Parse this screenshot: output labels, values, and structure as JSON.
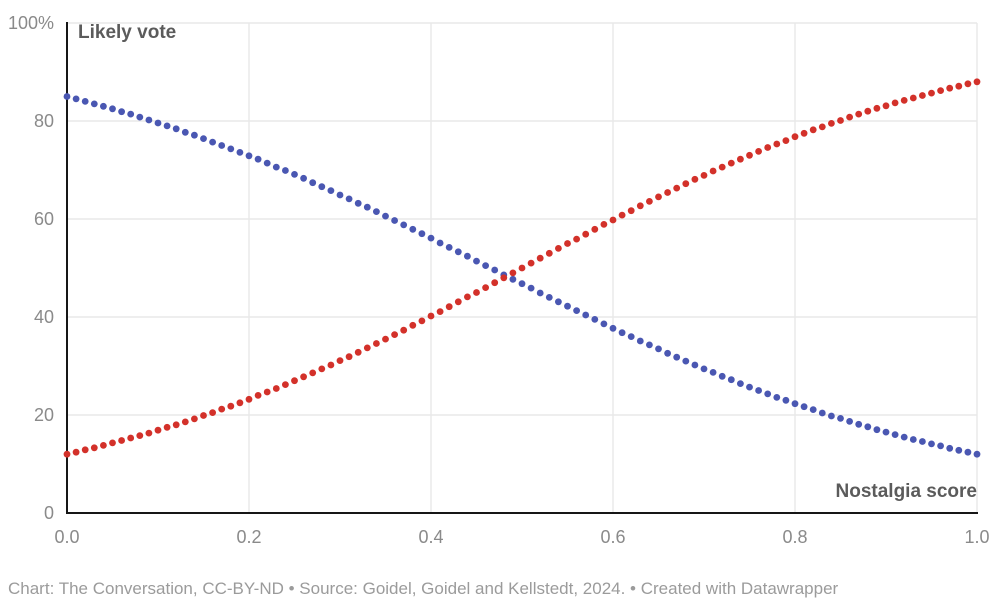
{
  "colors": {
    "background": "#ffffff",
    "series_blue": "#4A57B2",
    "series_red": "#D3312A",
    "grid": "#e8e8e8",
    "axis_line": "#161616",
    "tick_text": "#8a8a8a",
    "axis_title_text": "#5b5b5b",
    "footer_text": "#9b9b9b"
  },
  "chart_data": {
    "type": "scatter",
    "title": "",
    "y_axis_label": "Likely vote",
    "x_axis_label": "Nostalgia score",
    "xlim": [
      0,
      1
    ],
    "ylim": [
      0,
      100
    ],
    "grid": true,
    "legend": "none",
    "y_ticks": [
      {
        "value": 0,
        "label": "0"
      },
      {
        "value": 20,
        "label": "20"
      },
      {
        "value": 40,
        "label": "40"
      },
      {
        "value": 60,
        "label": "60"
      },
      {
        "value": 80,
        "label": "80"
      },
      {
        "value": 100,
        "label": "100%"
      }
    ],
    "x_ticks": [
      {
        "value": 0.0,
        "label": "0.0"
      },
      {
        "value": 0.2,
        "label": "0.2"
      },
      {
        "value": 0.4,
        "label": "0.4"
      },
      {
        "value": 0.6,
        "label": "0.6"
      },
      {
        "value": 0.8,
        "label": "0.8"
      },
      {
        "value": 1.0,
        "label": "1.0"
      }
    ],
    "x": [
      0,
      0.01,
      0.02,
      0.03,
      0.04,
      0.05,
      0.06,
      0.07,
      0.08,
      0.09,
      0.1,
      0.11,
      0.12,
      0.13,
      0.14,
      0.15,
      0.16,
      0.17,
      0.18,
      0.19,
      0.2,
      0.21,
      0.22,
      0.23,
      0.24,
      0.25,
      0.26,
      0.27,
      0.28,
      0.29,
      0.3,
      0.31,
      0.32,
      0.33,
      0.34,
      0.35,
      0.36,
      0.37,
      0.38,
      0.39,
      0.4,
      0.41,
      0.42,
      0.43,
      0.44,
      0.45,
      0.46,
      0.47,
      0.48,
      0.49,
      0.5,
      0.51,
      0.52,
      0.53,
      0.54,
      0.55,
      0.56,
      0.57,
      0.58,
      0.59,
      0.6,
      0.61,
      0.62,
      0.63,
      0.64,
      0.65,
      0.66,
      0.67,
      0.68,
      0.69,
      0.7,
      0.71,
      0.72,
      0.73,
      0.74,
      0.75,
      0.76,
      0.77,
      0.78,
      0.79,
      0.8,
      0.81,
      0.82,
      0.83,
      0.84,
      0.85,
      0.86,
      0.87,
      0.88,
      0.89,
      0.9,
      0.91,
      0.92,
      0.93,
      0.94,
      0.95,
      0.96,
      0.97,
      0.98,
      0.99,
      1
    ],
    "series": [
      {
        "id": "blue",
        "color": "#4A57B2",
        "values": [
          85.0,
          84.5,
          84.0,
          83.5,
          83.0,
          82.5,
          81.9,
          81.4,
          80.8,
          80.2,
          79.6,
          79.0,
          78.4,
          77.7,
          77.1,
          76.4,
          75.7,
          75.0,
          74.3,
          73.6,
          72.9,
          72.2,
          71.4,
          70.6,
          69.9,
          69.1,
          68.3,
          67.4,
          66.6,
          65.8,
          64.9,
          64.1,
          63.2,
          62.4,
          61.5,
          60.6,
          59.7,
          58.8,
          57.9,
          57.0,
          56.1,
          55.1,
          54.2,
          53.3,
          52.4,
          51.4,
          50.5,
          49.6,
          48.6,
          47.7,
          46.8,
          45.9,
          44.9,
          44.0,
          43.1,
          42.2,
          41.3,
          40.4,
          39.5,
          38.6,
          37.7,
          36.8,
          36.0,
          35.1,
          34.3,
          33.5,
          32.6,
          31.8,
          31.0,
          30.2,
          29.4,
          28.7,
          27.9,
          27.2,
          26.4,
          25.7,
          25.0,
          24.3,
          23.6,
          23.0,
          22.3,
          21.7,
          21.1,
          20.4,
          19.8,
          19.3,
          18.7,
          18.1,
          17.6,
          17.0,
          16.5,
          16.0,
          15.5,
          15.0,
          14.6,
          14.1,
          13.7,
          13.2,
          12.8,
          12.4,
          12.0
        ]
      },
      {
        "id": "red",
        "color": "#D3312A",
        "values": [
          12.0,
          12.4,
          12.9,
          13.3,
          13.8,
          14.3,
          14.8,
          15.3,
          15.8,
          16.3,
          16.9,
          17.5,
          18.0,
          18.6,
          19.2,
          19.9,
          20.5,
          21.2,
          21.8,
          22.5,
          23.2,
          24.0,
          24.7,
          25.4,
          26.2,
          27.0,
          27.8,
          28.6,
          29.4,
          30.2,
          31.1,
          31.9,
          32.8,
          33.7,
          34.6,
          35.5,
          36.4,
          37.3,
          38.3,
          39.2,
          40.2,
          41.1,
          42.1,
          43.1,
          44.1,
          45.0,
          46.0,
          47.0,
          48.0,
          49.0,
          50.0,
          51.0,
          52.0,
          53.0,
          54.0,
          55.0,
          55.9,
          56.9,
          57.9,
          58.9,
          59.8,
          60.8,
          61.7,
          62.7,
          63.6,
          64.5,
          65.4,
          66.3,
          67.2,
          68.1,
          68.9,
          69.8,
          70.6,
          71.4,
          72.2,
          73.0,
          73.8,
          74.6,
          75.3,
          76.0,
          76.8,
          77.5,
          78.2,
          78.8,
          79.5,
          80.1,
          80.8,
          81.4,
          82.0,
          82.6,
          83.1,
          83.7,
          84.2,
          84.7,
          85.2,
          85.7,
          86.2,
          86.7,
          87.1,
          87.6,
          88.0
        ]
      }
    ]
  },
  "footer": {
    "text": "Chart: The Conversation, CC-BY-ND • Source: Goidel, Goidel and Kellstedt, 2024. • Created with Datawrapper"
  }
}
